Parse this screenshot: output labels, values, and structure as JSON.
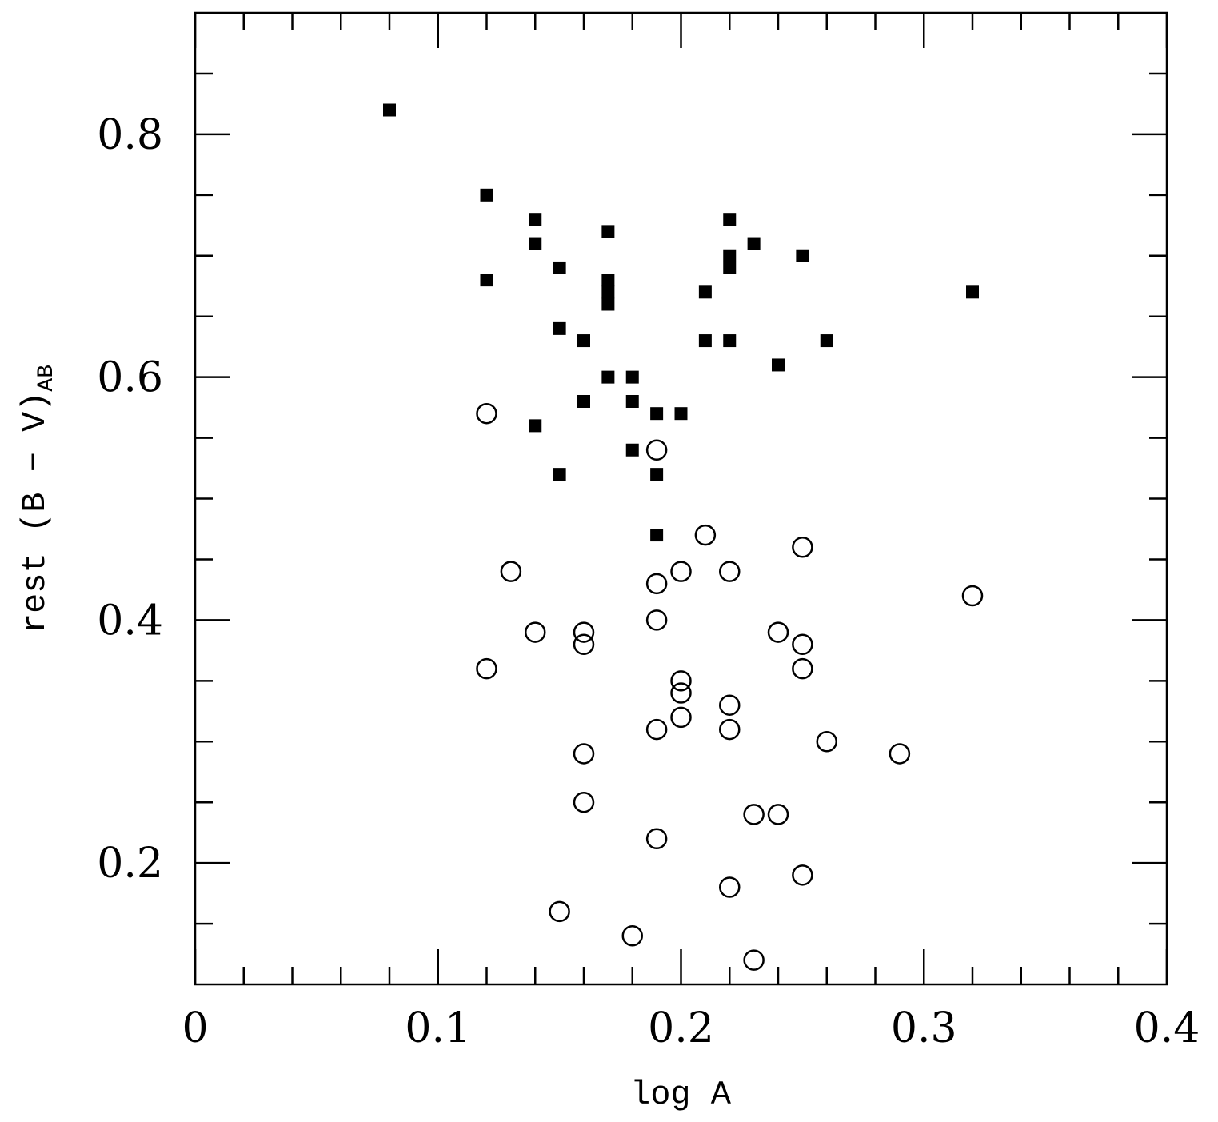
{
  "chart_data": {
    "type": "scatter",
    "xlabel": "log A",
    "ylabel": "rest (B − V)",
    "ylabel_subscript": "AB",
    "xlim": [
      0,
      0.4
    ],
    "ylim": [
      0.1,
      0.9
    ],
    "xticks": [
      0,
      0.1,
      0.2,
      0.3,
      0.4
    ],
    "yticks": [
      0.2,
      0.4,
      0.6,
      0.8
    ],
    "xminorticks": [
      0.02,
      0.04,
      0.06,
      0.08,
      0.12,
      0.14,
      0.16,
      0.18,
      0.22,
      0.24,
      0.26,
      0.28,
      0.32,
      0.34,
      0.36,
      0.38
    ],
    "yminorticks": [
      0.15,
      0.25,
      0.3,
      0.35,
      0.45,
      0.5,
      0.55,
      0.65,
      0.7,
      0.75,
      0.85
    ],
    "series": [
      {
        "marker": "square",
        "color": "#000000",
        "x": [
          0.08,
          0.12,
          0.14,
          0.14,
          0.15,
          0.12,
          0.17,
          0.17,
          0.17,
          0.17,
          0.15,
          0.16,
          0.17,
          0.18,
          0.16,
          0.18,
          0.14,
          0.19,
          0.2,
          0.18,
          0.15,
          0.19,
          0.19,
          0.22,
          0.22,
          0.22,
          0.23,
          0.25,
          0.21,
          0.21,
          0.22,
          0.24,
          0.26,
          0.32
        ],
        "values": [
          0.82,
          0.75,
          0.73,
          0.71,
          0.69,
          0.68,
          0.72,
          0.68,
          0.67,
          0.66,
          0.64,
          0.63,
          0.6,
          0.6,
          0.58,
          0.58,
          0.56,
          0.57,
          0.57,
          0.54,
          0.52,
          0.52,
          0.47,
          0.73,
          0.7,
          0.69,
          0.71,
          0.7,
          0.67,
          0.63,
          0.63,
          0.61,
          0.63,
          0.67
        ]
      },
      {
        "marker": "open-circle",
        "color": "#000000",
        "x": [
          0.12,
          0.19,
          0.21,
          0.25,
          0.13,
          0.2,
          0.22,
          0.19,
          0.32,
          0.19,
          0.14,
          0.16,
          0.16,
          0.24,
          0.25,
          0.12,
          0.25,
          0.2,
          0.2,
          0.22,
          0.2,
          0.19,
          0.22,
          0.26,
          0.16,
          0.29,
          0.16,
          0.23,
          0.24,
          0.19,
          0.25,
          0.22,
          0.15,
          0.18,
          0.23
        ],
        "values": [
          0.57,
          0.54,
          0.47,
          0.46,
          0.44,
          0.44,
          0.44,
          0.43,
          0.42,
          0.4,
          0.39,
          0.39,
          0.38,
          0.39,
          0.38,
          0.36,
          0.36,
          0.35,
          0.34,
          0.33,
          0.32,
          0.31,
          0.31,
          0.3,
          0.29,
          0.29,
          0.25,
          0.24,
          0.24,
          0.22,
          0.19,
          0.18,
          0.16,
          0.14,
          0.12
        ]
      }
    ]
  }
}
